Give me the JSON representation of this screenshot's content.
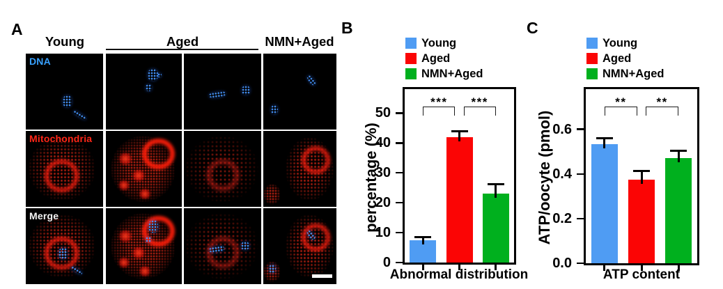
{
  "panel_a": {
    "label": "A",
    "column_headers": [
      "Young",
      "Aged",
      "NMN+Aged"
    ],
    "row_labels": [
      {
        "text": "DNA",
        "color": "#38a1ff"
      },
      {
        "text": "Mitochondria",
        "color": "#ff2617"
      },
      {
        "text": "Merge",
        "color": "#f2f2f2"
      }
    ]
  },
  "panel_b": {
    "label": "B"
  },
  "panel_c": {
    "label": "C"
  },
  "legend": {
    "items": [
      {
        "label": "Young",
        "color": "#4f9cf3"
      },
      {
        "label": "Aged",
        "color": "#fb0505"
      },
      {
        "label": "NMN+Aged",
        "color": "#00b01e"
      }
    ]
  },
  "chart_data": [
    {
      "id": "B",
      "type": "bar",
      "title": "",
      "categories": [
        "Young",
        "Aged",
        "NMN+Aged"
      ],
      "values": [
        7.5,
        42,
        23
      ],
      "errors": [
        1,
        2,
        3.2
      ],
      "bar_colors": [
        "#4f9cf3",
        "#fb0505",
        "#00b01e"
      ],
      "ylabel": "percentage (%)",
      "xlabel": "Abnormal distribution",
      "ytick_values": [
        0,
        10,
        20,
        30,
        40,
        50
      ],
      "ytick_labels": [
        "0",
        "10",
        "20",
        "30",
        "40",
        "50"
      ],
      "ylim": [
        0,
        58
      ],
      "grid": false,
      "legend_position": "top",
      "significance": [
        {
          "between": [
            "Young",
            "Aged"
          ],
          "label": "***"
        },
        {
          "between": [
            "Aged",
            "NMN+Aged"
          ],
          "label": "***"
        }
      ]
    },
    {
      "id": "C",
      "type": "bar",
      "title": "",
      "categories": [
        "Young",
        "Aged",
        "NMN+Aged"
      ],
      "values": [
        0.535,
        0.375,
        0.47
      ],
      "errors": [
        0.025,
        0.04,
        0.035
      ],
      "bar_colors": [
        "#4f9cf3",
        "#fb0505",
        "#00b01e"
      ],
      "ylabel": "ATP/oocyte (pmol)",
      "xlabel": "ATP content",
      "ytick_values": [
        0,
        0.2,
        0.4,
        0.6
      ],
      "ytick_labels": [
        "0.0",
        "0.2",
        "0.4",
        "0.6"
      ],
      "ylim": [
        0,
        0.78
      ],
      "grid": false,
      "legend_position": "top",
      "significance": [
        {
          "between": [
            "Young",
            "Aged"
          ],
          "label": "**"
        },
        {
          "between": [
            "Aged",
            "NMN+Aged"
          ],
          "label": "**"
        }
      ]
    }
  ]
}
